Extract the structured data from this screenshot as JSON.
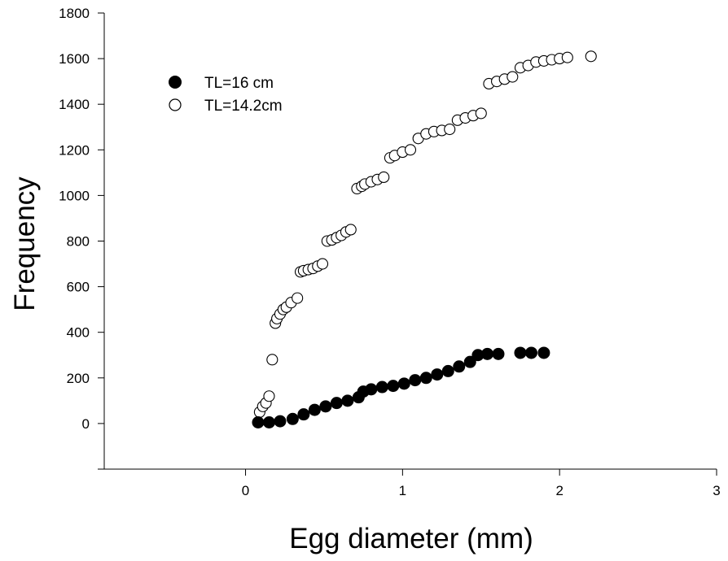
{
  "chart_data": {
    "type": "scatter",
    "title": "",
    "xlabel": "Egg diameter (mm)",
    "ylabel": "Frequency",
    "xlim": [
      -0.9,
      3
    ],
    "ylim": [
      -200,
      1800
    ],
    "x_ticks": [
      0,
      1,
      2,
      3
    ],
    "y_ticks": [
      0,
      200,
      400,
      600,
      800,
      1000,
      1200,
      1400,
      1600,
      1800
    ],
    "grid": false,
    "legend_position": "top-left",
    "series": [
      {
        "name": "TL=16 cm",
        "marker": "filled-circle",
        "color": "#000000",
        "x": [
          0.08,
          0.15,
          0.22,
          0.3,
          0.37,
          0.44,
          0.51,
          0.58,
          0.65,
          0.72,
          0.75,
          0.8,
          0.87,
          0.94,
          1.01,
          1.08,
          1.15,
          1.22,
          1.29,
          1.36,
          1.43,
          1.48,
          1.54,
          1.61,
          1.75,
          1.82,
          1.9
        ],
        "y": [
          5,
          5,
          10,
          20,
          40,
          60,
          75,
          90,
          100,
          115,
          140,
          150,
          160,
          165,
          175,
          190,
          200,
          215,
          230,
          250,
          270,
          300,
          305,
          305,
          310,
          310,
          310
        ]
      },
      {
        "name": "TL=14.2cm",
        "marker": "open-circle",
        "color": "#000000",
        "x": [
          0.09,
          0.11,
          0.13,
          0.15,
          0.17,
          0.19,
          0.2,
          0.22,
          0.24,
          0.26,
          0.29,
          0.33,
          0.35,
          0.37,
          0.4,
          0.43,
          0.46,
          0.49,
          0.52,
          0.55,
          0.58,
          0.61,
          0.64,
          0.67,
          0.71,
          0.74,
          0.76,
          0.8,
          0.84,
          0.88,
          0.92,
          0.95,
          1.0,
          1.05,
          1.1,
          1.15,
          1.2,
          1.25,
          1.3,
          1.35,
          1.4,
          1.45,
          1.5,
          1.55,
          1.6,
          1.65,
          1.7,
          1.75,
          1.8,
          1.85,
          1.9,
          1.95,
          2.0,
          2.05,
          2.2
        ],
        "y": [
          50,
          75,
          90,
          120,
          280,
          440,
          460,
          480,
          500,
          510,
          530,
          550,
          665,
          670,
          675,
          680,
          690,
          700,
          800,
          805,
          815,
          825,
          840,
          850,
          1030,
          1040,
          1050,
          1060,
          1070,
          1080,
          1165,
          1175,
          1190,
          1200,
          1250,
          1270,
          1280,
          1285,
          1290,
          1330,
          1340,
          1350,
          1360,
          1490,
          1500,
          1510,
          1520,
          1560,
          1570,
          1585,
          1590,
          1595,
          1600,
          1605,
          1610
        ]
      }
    ]
  }
}
